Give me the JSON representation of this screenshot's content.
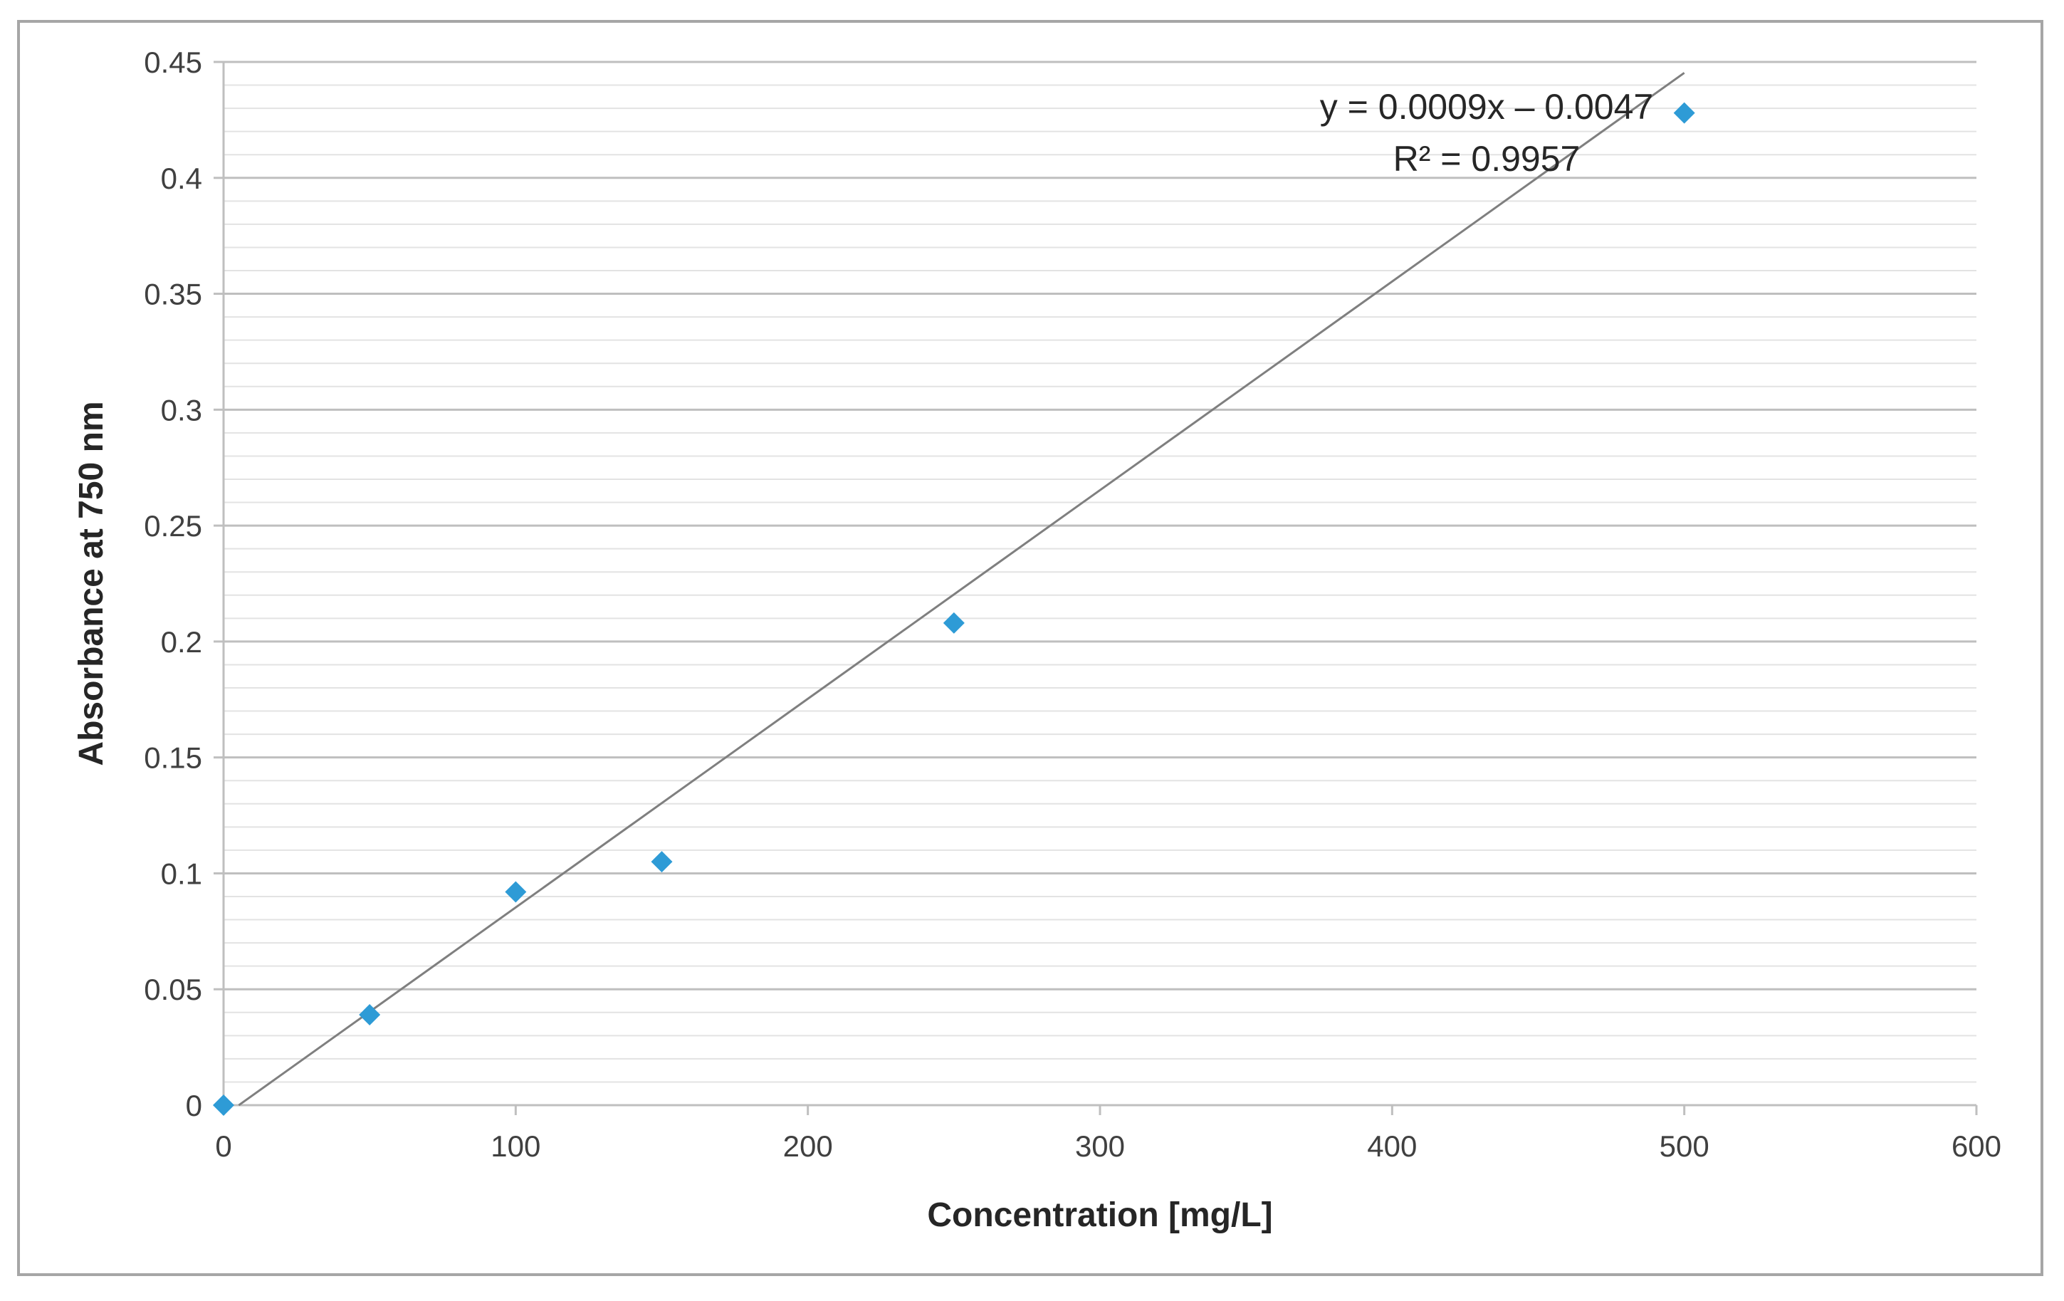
{
  "chart_data": {
    "type": "scatter",
    "title": "",
    "xlabel": "Concentration [mg/L]",
    "ylabel": "Absorbance at 750 nm",
    "xlim": [
      0,
      600
    ],
    "ylim": [
      0,
      0.45
    ],
    "x_ticks": [
      "0",
      "100",
      "200",
      "300",
      "400",
      "500",
      "600"
    ],
    "y_ticks": [
      "0",
      "0.05",
      "0.1",
      "0.15",
      "0.2",
      "0.25",
      "0.3",
      "0.35",
      "0.4",
      "0.45"
    ],
    "major_y_step": 0.05,
    "minor_y_step": 0.01,
    "grid": true,
    "series": [
      {
        "name": "Absorbance",
        "color": "#2e9bd6",
        "marker": "diamond",
        "x": [
          0,
          50,
          100,
          150,
          250,
          500
        ],
        "y": [
          0,
          0.039,
          0.092,
          0.105,
          0.208,
          0.428
        ]
      }
    ],
    "trendline": {
      "type": "linear",
      "slope": 0.0009,
      "intercept": -0.0047,
      "x_range": [
        5.2,
        500
      ],
      "color": "#7f7f7f",
      "equation": "y = 0.0009x – 0.0047",
      "r_squared": "R² = 0.9957"
    }
  }
}
